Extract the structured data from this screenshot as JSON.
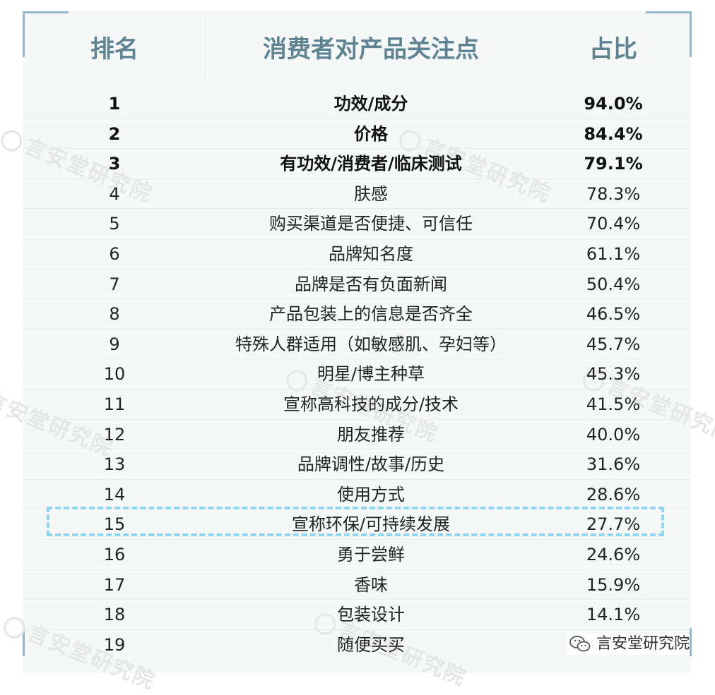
{
  "header": {
    "rank": "排名",
    "focus": "消费者对产品关注点",
    "share": "占比"
  },
  "rows": [
    {
      "rank": "1",
      "item": "功效/成分",
      "pct": "94.0%",
      "bold": true
    },
    {
      "rank": "2",
      "item": "价格",
      "pct": "84.4%",
      "bold": true
    },
    {
      "rank": "3",
      "item": "有功效/消费者/临床测试",
      "pct": "79.1%",
      "bold": true
    },
    {
      "rank": "4",
      "item": "肤感",
      "pct": "78.3%"
    },
    {
      "rank": "5",
      "item": "购买渠道是否便捷、可信任",
      "pct": "70.4%"
    },
    {
      "rank": "6",
      "item": "品牌知名度",
      "pct": "61.1%"
    },
    {
      "rank": "7",
      "item": "品牌是否有负面新闻",
      "pct": "50.4%"
    },
    {
      "rank": "8",
      "item": "产品包装上的信息是否齐全",
      "pct": "46.5%"
    },
    {
      "rank": "9",
      "item": "特殊人群适用（如敏感肌、孕妇等）",
      "pct": "45.7%"
    },
    {
      "rank": "10",
      "item": "明星/博主种草",
      "pct": "45.3%"
    },
    {
      "rank": "11",
      "item": "宣称高科技的成分/技术",
      "pct": "41.5%"
    },
    {
      "rank": "12",
      "item": "朋友推荐",
      "pct": "40.0%"
    },
    {
      "rank": "13",
      "item": "品牌调性/故事/历史",
      "pct": "31.6%"
    },
    {
      "rank": "14",
      "item": "使用方式",
      "pct": "28.6%"
    },
    {
      "rank": "15",
      "item": "宣称环保/可持续发展",
      "pct": "27.7%",
      "highlighted": true
    },
    {
      "rank": "16",
      "item": "勇于尝鲜",
      "pct": "24.6%"
    },
    {
      "rank": "17",
      "item": "香味",
      "pct": "15.9%"
    },
    {
      "rank": "18",
      "item": "包装设计",
      "pct": "14.1%"
    },
    {
      "rank": "19",
      "item": "随便买买",
      "pct": ""
    }
  ],
  "watermark": "言安堂研究院",
  "footer": {
    "label": "言安堂研究院",
    "icon": "wechat-icon"
  },
  "colors": {
    "header": "#5e8493",
    "highlight_border": "#8fd6f2",
    "panel": "#f6f7f7",
    "corner": "#8fb8c8"
  }
}
